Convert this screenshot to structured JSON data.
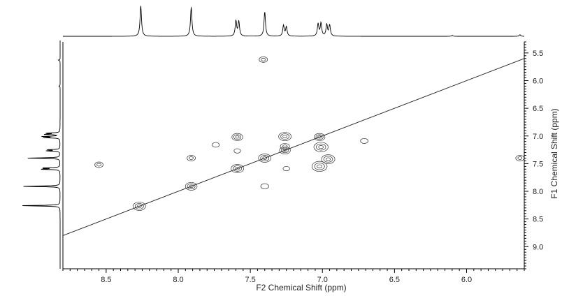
{
  "chart_data": {
    "type": "contour",
    "title": "",
    "xlabel": "F2 Chemical Shift (ppm)",
    "ylabel": "F1 Chemical Shift (ppm)",
    "xlim": [
      8.8,
      5.6
    ],
    "ylim": [
      5.3,
      9.4
    ],
    "x_ticks": [
      "8.5",
      "8.0",
      "7.5",
      "7.0",
      "6.5",
      "6.0"
    ],
    "y_ticks": [
      "5.5",
      "6.0",
      "6.5",
      "7.0",
      "7.5",
      "8.0",
      "8.5",
      "9.0"
    ],
    "x_tick_values": [
      8.5,
      8.0,
      7.5,
      7.0,
      6.5,
      6.0
    ],
    "y_tick_values": [
      5.5,
      6.0,
      6.5,
      7.0,
      7.5,
      8.0,
      8.5,
      9.0
    ],
    "diagonal": {
      "from": [
        8.8,
        8.8
      ],
      "to": [
        5.6,
        5.6
      ]
    },
    "projection_1d_peaks": [
      {
        "ppm": 8.26,
        "intensity": 1.0
      },
      {
        "ppm": 7.91,
        "intensity": 0.95
      },
      {
        "ppm": 7.6,
        "intensity": 0.5
      },
      {
        "ppm": 7.58,
        "intensity": 0.48
      },
      {
        "ppm": 7.4,
        "intensity": 0.8
      },
      {
        "ppm": 7.27,
        "intensity": 0.35
      },
      {
        "ppm": 7.25,
        "intensity": 0.3
      },
      {
        "ppm": 7.03,
        "intensity": 0.4
      },
      {
        "ppm": 7.01,
        "intensity": 0.42
      },
      {
        "ppm": 6.97,
        "intensity": 0.38
      },
      {
        "ppm": 6.95,
        "intensity": 0.36
      },
      {
        "ppm": 6.1,
        "intensity": 0.03
      },
      {
        "ppm": 5.63,
        "intensity": 0.05
      }
    ],
    "cross_peaks": [
      {
        "x": 8.27,
        "y": 8.27,
        "size": 1.0
      },
      {
        "x": 7.91,
        "y": 7.91,
        "size": 0.9
      },
      {
        "x": 7.59,
        "y": 7.59,
        "size": 1.0
      },
      {
        "x": 7.4,
        "y": 7.4,
        "size": 1.0
      },
      {
        "x": 7.26,
        "y": 7.26,
        "size": 0.8
      },
      {
        "x": 7.02,
        "y": 7.02,
        "size": 0.8
      },
      {
        "x": 7.59,
        "y": 7.02,
        "size": 0.8
      },
      {
        "x": 7.26,
        "y": 7.01,
        "size": 1.0
      },
      {
        "x": 7.26,
        "y": 7.19,
        "size": 0.6
      },
      {
        "x": 7.01,
        "y": 7.2,
        "size": 1.2
      },
      {
        "x": 7.02,
        "y": 7.55,
        "size": 1.3
      },
      {
        "x": 6.96,
        "y": 7.42,
        "size": 1.1
      },
      {
        "x": 7.41,
        "y": 5.62,
        "size": 0.5
      },
      {
        "x": 8.55,
        "y": 7.52,
        "size": 0.5
      },
      {
        "x": 7.91,
        "y": 7.4,
        "size": 0.5
      },
      {
        "x": 7.4,
        "y": 7.91,
        "size": 0.45
      },
      {
        "x": 7.74,
        "y": 7.16,
        "size": 0.35
      },
      {
        "x": 6.71,
        "y": 7.09,
        "size": 0.4
      },
      {
        "x": 5.63,
        "y": 7.4,
        "size": 0.5
      },
      {
        "x": 7.59,
        "y": 7.27,
        "size": 0.3
      },
      {
        "x": 7.25,
        "y": 7.59,
        "size": 0.3
      }
    ]
  }
}
